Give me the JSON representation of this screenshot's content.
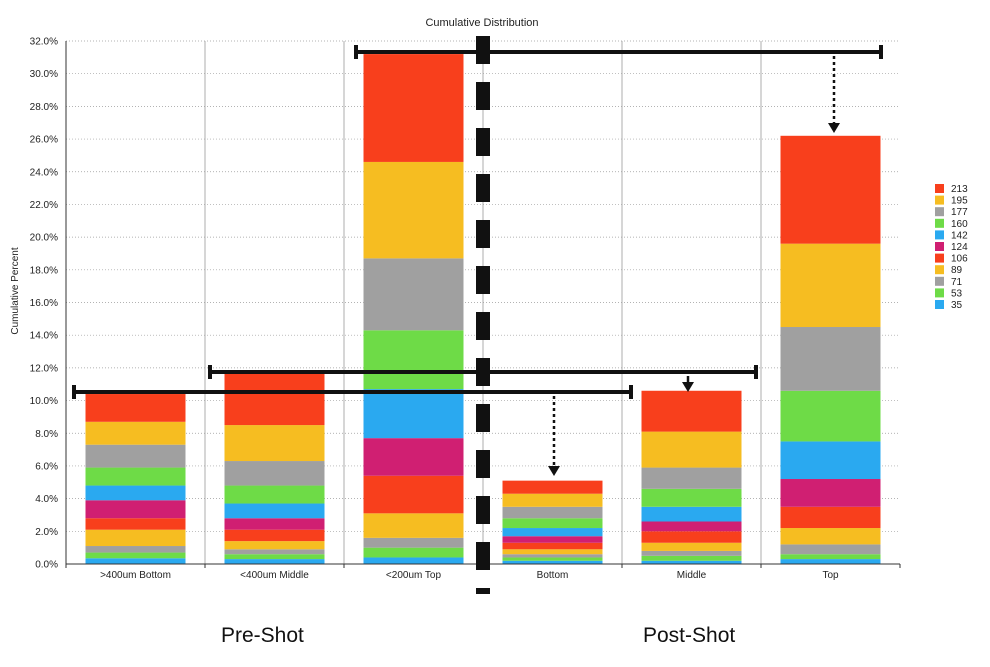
{
  "chart_data": {
    "type": "bar",
    "stacked": true,
    "title": "Cumulative Distribution",
    "xlabel": "",
    "ylabel": "Cumulative Percent",
    "ylim": [
      0,
      32
    ],
    "yticks": [
      "0.0%",
      "2.0%",
      "4.0%",
      "6.0%",
      "8.0%",
      "10.0%",
      "12.0%",
      "14.0%",
      "16.0%",
      "18.0%",
      "20.0%",
      "22.0%",
      "24.0%",
      "26.0%",
      "28.0%",
      "30.0%",
      "32.0%"
    ],
    "grid": true,
    "legend_position": "right",
    "categories": [
      ">400um Bottom",
      "<400um Middle",
      "<200um Top",
      "Bottom",
      "Middle",
      "Top"
    ],
    "groups": [
      "Pre-Shot",
      "Post-Shot"
    ],
    "series": [
      {
        "name": "35",
        "color": "#2aa9f0",
        "values": [
          0.35,
          0.3,
          0.4,
          0.2,
          0.2,
          0.3
        ]
      },
      {
        "name": "53",
        "color": "#6edb47",
        "values": [
          0.35,
          0.3,
          0.6,
          0.2,
          0.3,
          0.3
        ]
      },
      {
        "name": "71",
        "color": "#a0a0a0",
        "values": [
          0.4,
          0.3,
          0.6,
          0.2,
          0.3,
          0.6
        ]
      },
      {
        "name": "89",
        "color": "#f6bd21",
        "values": [
          1.0,
          0.5,
          1.5,
          0.3,
          0.5,
          1.0
        ]
      },
      {
        "name": "106",
        "color": "#f83f1c",
        "values": [
          0.7,
          0.7,
          2.3,
          0.4,
          0.7,
          1.3
        ]
      },
      {
        "name": "124",
        "color": "#d01f72",
        "values": [
          1.1,
          0.7,
          2.3,
          0.4,
          0.6,
          1.7
        ]
      },
      {
        "name": "142",
        "color": "#2aa9f0",
        "values": [
          0.9,
          0.9,
          3.0,
          0.5,
          0.9,
          2.3
        ]
      },
      {
        "name": "160",
        "color": "#6edb47",
        "values": [
          1.1,
          1.1,
          3.6,
          0.6,
          1.1,
          3.1
        ]
      },
      {
        "name": "177",
        "color": "#a0a0a0",
        "values": [
          1.4,
          1.5,
          4.4,
          0.7,
          1.3,
          3.9
        ]
      },
      {
        "name": "195",
        "color": "#f6bd21",
        "values": [
          1.4,
          2.2,
          5.9,
          0.8,
          2.2,
          5.1
        ]
      },
      {
        "name": "213",
        "color": "#f83f1c",
        "values": [
          1.7,
          3.3,
          6.6,
          0.8,
          2.5,
          6.6
        ]
      }
    ],
    "legend_order": [
      "213",
      "195",
      "177",
      "160",
      "142",
      "124",
      "106",
      "89",
      "71",
      "53",
      "35"
    ]
  }
}
